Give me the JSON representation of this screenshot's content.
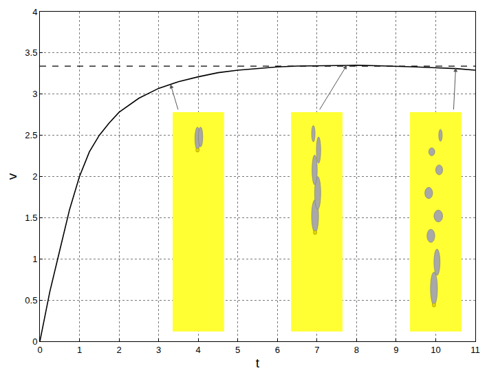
{
  "chart_data": {
    "type": "line",
    "x_label": "t",
    "y_label": "v",
    "x": [
      0,
      0.25,
      0.5,
      0.75,
      1,
      1.25,
      1.5,
      1.75,
      2,
      2.5,
      3,
      3.5,
      4,
      4.5,
      5,
      5.5,
      6,
      6.5,
      7,
      7.5,
      8,
      8.5,
      9,
      9.5,
      10,
      10.5,
      11
    ],
    "series": [
      {
        "color": "#000000",
        "line_style": "solid",
        "values": [
          0,
          0.6,
          1.1,
          1.6,
          2.0,
          2.3,
          2.5,
          2.65,
          2.78,
          2.95,
          3.07,
          3.15,
          3.21,
          3.26,
          3.29,
          3.31,
          3.33,
          3.34,
          3.345,
          3.35,
          3.35,
          3.345,
          3.34,
          3.33,
          3.32,
          3.31,
          3.29
        ]
      },
      {
        "color": "#000000",
        "line_style": "dashed",
        "values": [
          3.34,
          3.34,
          3.34,
          3.34,
          3.34,
          3.34,
          3.34,
          3.34,
          3.34,
          3.34,
          3.34,
          3.34,
          3.34,
          3.34,
          3.34,
          3.34,
          3.34,
          3.34,
          3.34,
          3.34,
          3.34,
          3.34,
          3.34,
          3.34,
          3.34,
          3.34,
          3.34
        ]
      }
    ],
    "xlim": [
      0,
      11
    ],
    "ylim": [
      0,
      4
    ],
    "xticks": [
      0,
      1,
      2,
      3,
      4,
      5,
      6,
      7,
      8,
      9,
      10,
      11
    ],
    "yticks": [
      0,
      0.5,
      1,
      1.5,
      2,
      2.5,
      3,
      3.5,
      4
    ],
    "grid": true
  }
}
